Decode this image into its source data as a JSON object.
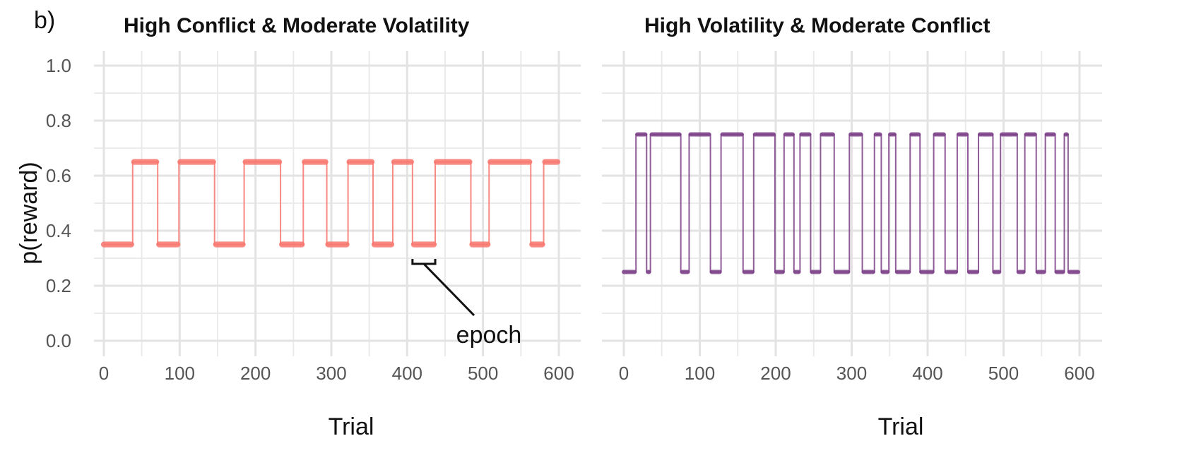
{
  "figure": {
    "panel_label": "b)",
    "annotation": "epoch",
    "ylabel": "p(reward)"
  },
  "chart_data": [
    {
      "type": "line",
      "title": "High Conflict & Moderate Volatility",
      "xlabel": "Trial",
      "ylabel": "p(reward)",
      "xlim": [
        0,
        600
      ],
      "ylim": [
        0,
        1
      ],
      "xticks": [
        0,
        100,
        200,
        300,
        400,
        500,
        600
      ],
      "yticks": [
        "0.0",
        "0.2",
        "0.4",
        "0.6",
        "0.8",
        "1.0"
      ],
      "grid": true,
      "color": "#f8766d",
      "levels": [
        0.35,
        0.65
      ],
      "switch_trials": [
        38,
        71,
        99,
        146,
        185,
        233,
        263,
        294,
        322,
        355,
        381,
        407,
        437,
        484,
        508,
        563,
        580
      ],
      "start_value": 0.35,
      "end_trial": 600,
      "annotation": {
        "text": "epoch",
        "epoch_start": 407,
        "epoch_end": 437,
        "level": 0.35
      }
    },
    {
      "type": "line",
      "title": "High Volatility & Moderate Conflict",
      "xlabel": "Trial",
      "xlim": [
        0,
        600
      ],
      "ylim": [
        0,
        1
      ],
      "xticks": [
        0,
        100,
        200,
        300,
        400,
        500,
        600
      ],
      "grid": true,
      "color": "#7b3f87",
      "levels": [
        0.25,
        0.75
      ],
      "switch_trials": [
        16,
        30,
        35,
        75,
        86,
        114,
        128,
        157,
        171,
        199,
        211,
        224,
        232,
        246,
        259,
        277,
        297,
        314,
        330,
        339,
        349,
        358,
        377,
        390,
        408,
        423,
        439,
        453,
        467,
        486,
        496,
        518,
        528,
        543,
        555,
        568,
        580,
        585
      ],
      "start_value": 0.25,
      "end_trial": 600
    }
  ]
}
